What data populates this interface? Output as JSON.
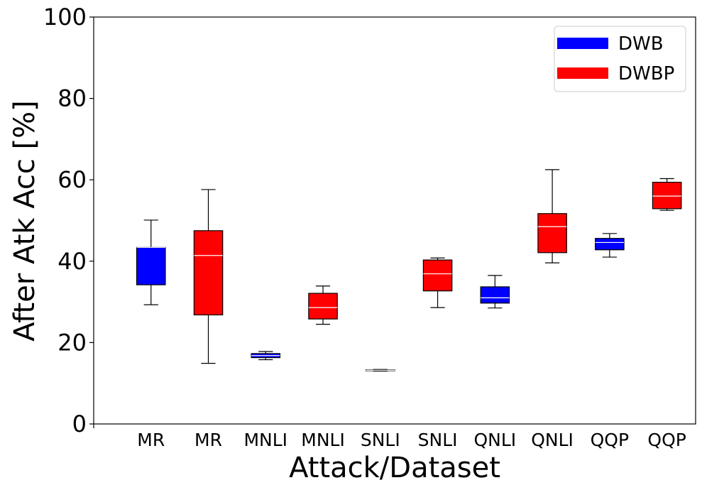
{
  "chart_data": {
    "type": "box",
    "title": "",
    "xlabel": "Attack/Dataset",
    "ylabel": "After Atk Acc [%]",
    "ylim": [
      0,
      100
    ],
    "yticks": [
      "0",
      "20",
      "40",
      "60",
      "80",
      "100"
    ],
    "grid": false,
    "legend_position": "top-right",
    "series": [
      {
        "name": "DWB",
        "color": "#0000ff"
      },
      {
        "name": "DWBP",
        "color": "#ff0000"
      }
    ],
    "categories": [
      "MR",
      "MR",
      "MNLI",
      "MNLI",
      "SNLI",
      "SNLI",
      "QNLI",
      "QNLI",
      "QQP",
      "QQP"
    ],
    "boxes": [
      {
        "label": "MR",
        "series": "DWB",
        "min": 29.3,
        "q1": 34.2,
        "median": 43.4,
        "q3": 43.4,
        "max": 50.1
      },
      {
        "label": "MR",
        "series": "DWBP",
        "min": 14.9,
        "q1": 26.8,
        "median": 41.4,
        "q3": 47.5,
        "max": 57.6
      },
      {
        "label": "MNLI",
        "series": "DWB",
        "min": 15.8,
        "q1": 16.3,
        "median": 16.8,
        "q3": 17.3,
        "max": 17.8
      },
      {
        "label": "MNLI",
        "series": "DWBP",
        "min": 24.5,
        "q1": 25.8,
        "median": 28.6,
        "q3": 32.1,
        "max": 33.9
      },
      {
        "label": "SNLI",
        "series": "DWB",
        "min": 13.0,
        "q1": 13.1,
        "median": 13.2,
        "q3": 13.3,
        "max": 13.4
      },
      {
        "label": "SNLI",
        "series": "DWBP",
        "min": 28.6,
        "q1": 32.7,
        "median": 36.9,
        "q3": 40.3,
        "max": 40.8
      },
      {
        "label": "QNLI",
        "series": "DWB",
        "min": 28.5,
        "q1": 29.7,
        "median": 31.0,
        "q3": 33.7,
        "max": 36.5
      },
      {
        "label": "QNLI",
        "series": "DWBP",
        "min": 39.6,
        "q1": 42.1,
        "median": 48.5,
        "q3": 51.7,
        "max": 62.5
      },
      {
        "label": "QQP",
        "series": "DWB",
        "min": 41.0,
        "q1": 42.8,
        "median": 44.6,
        "q3": 45.6,
        "max": 46.8
      },
      {
        "label": "QQP",
        "series": "DWBP",
        "min": 52.5,
        "q1": 52.9,
        "median": 56.0,
        "q3": 59.4,
        "max": 60.3
      }
    ]
  }
}
